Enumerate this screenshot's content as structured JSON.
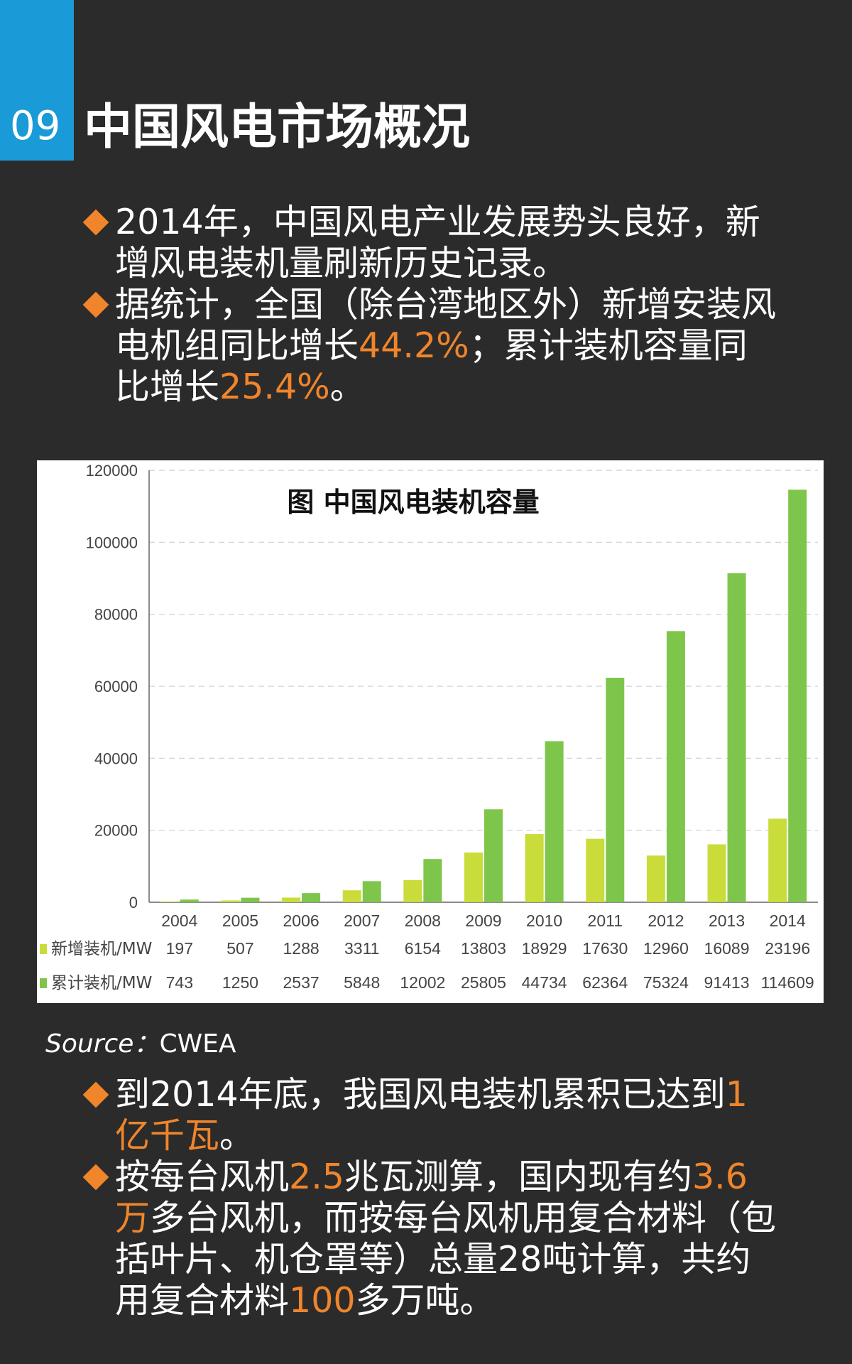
{
  "header": {
    "number": "09",
    "title": "中国风电市场概况"
  },
  "bullets_top": [
    {
      "parts": [
        "2014年，中国风电产业发展势头良好，新增风电装机量刷新历史记录。"
      ]
    },
    {
      "parts": [
        "据统计，全国（除台湾地区外）新增安装风电机组同比增长",
        "44.2%",
        "；累计装机容量同比增长",
        "25.4%",
        "。"
      ]
    }
  ],
  "source": {
    "label": "Source：",
    "value": "CWEA"
  },
  "bullets_bottom": [
    {
      "parts": [
        "到2014年底，我国风电装机累积已达到",
        "1亿千瓦",
        "。"
      ]
    },
    {
      "parts": [
        "按每台风机",
        "2.5",
        "兆瓦测算，国内现有约",
        "3.6万",
        "多台风机，而按每台风机用复合材料（包括叶片、机仓罩等）总量28吨计算，共约用复合材料",
        "100",
        "多万吨。"
      ]
    }
  ],
  "colors": {
    "accent": "#f0852b",
    "tab": "#1a9ad6",
    "series_new": "#c9dc3a",
    "series_cum": "#7ec64b"
  },
  "chart_data": {
    "type": "bar",
    "title": "图 中国风电装机容量",
    "categories": [
      "2004",
      "2005",
      "2006",
      "2007",
      "2008",
      "2009",
      "2010",
      "2011",
      "2012",
      "2013",
      "2014"
    ],
    "ylim": [
      0,
      120000
    ],
    "yticks": [
      "0",
      "20000",
      "40000",
      "60000",
      "80000",
      "100000",
      "120000"
    ],
    "grid": true,
    "series": [
      {
        "name": "新增装机/MW",
        "values": [
          197,
          507,
          1288,
          3311,
          6154,
          13803,
          18929,
          17630,
          12960,
          16089,
          23196
        ]
      },
      {
        "name": "累计装机/MW",
        "values": [
          743,
          1250,
          2537,
          5848,
          12002,
          25805,
          44734,
          62364,
          75324,
          91413,
          114609
        ]
      }
    ]
  }
}
